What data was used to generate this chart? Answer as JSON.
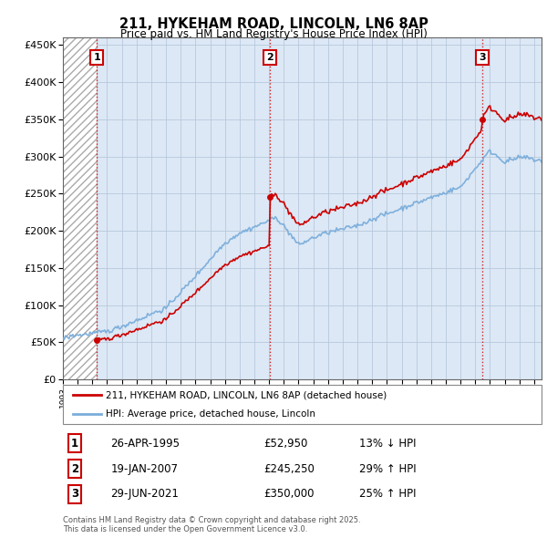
{
  "title": "211, HYKEHAM ROAD, LINCOLN, LN6 8AP",
  "subtitle": "Price paid vs. HM Land Registry's House Price Index (HPI)",
  "legend_line1": "211, HYKEHAM ROAD, LINCOLN, LN6 8AP (detached house)",
  "legend_line2": "HPI: Average price, detached house, Lincoln",
  "transactions": [
    {
      "num": 1,
      "date": "26-APR-1995",
      "price": 52950,
      "pct": "13%",
      "dir": "↓",
      "year_x": 1995.32
    },
    {
      "num": 2,
      "date": "19-JAN-2007",
      "price": 245250,
      "pct": "29%",
      "dir": "↑",
      "year_x": 2007.05
    },
    {
      "num": 3,
      "date": "29-JUN-2021",
      "price": 350000,
      "pct": "25%",
      "dir": "↑",
      "year_x": 2021.49
    }
  ],
  "footer": "Contains HM Land Registry data © Crown copyright and database right 2025.\nThis data is licensed under the Open Government Licence v3.0.",
  "ylim": [
    0,
    460000
  ],
  "xlim_start": 1993.0,
  "xlim_end": 2025.5,
  "red_color": "#cc0000",
  "blue_color": "#7aaddb",
  "background_color": "#dce8f5",
  "grid_color": "#b8c8dc"
}
